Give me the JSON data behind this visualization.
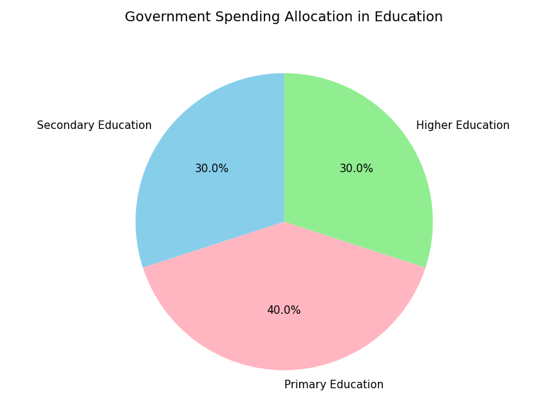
{
  "title": "Government Spending Allocation in Education",
  "labels": [
    "Primary Education",
    "Higher Education",
    "Secondary Education"
  ],
  "values": [
    40,
    30,
    30
  ],
  "colors": [
    "#FFB6C1",
    "#90EE90",
    "#87CEEB"
  ],
  "startangle": 198,
  "label_fontsize": 11,
  "title_fontsize": 14
}
